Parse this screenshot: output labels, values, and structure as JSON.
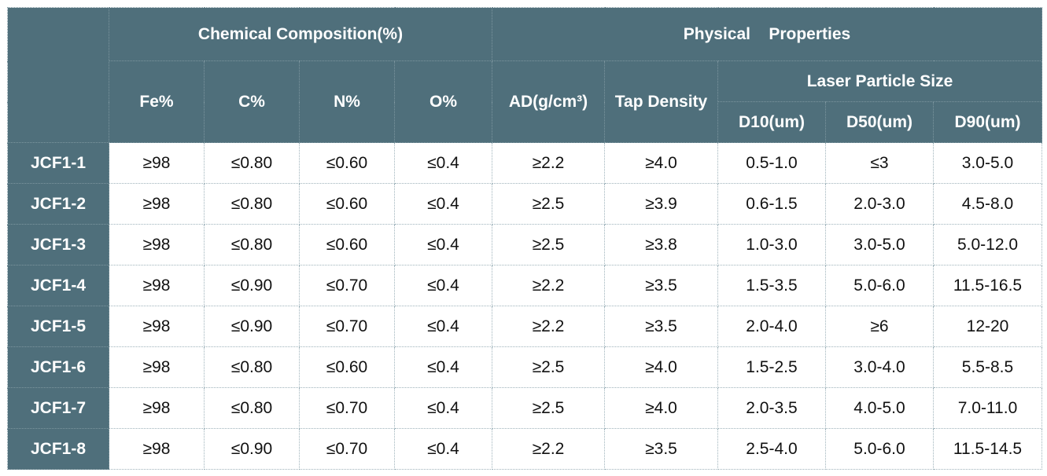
{
  "headers": {
    "chemical": "Chemical Composition(%)",
    "physical": "Physical    Properties",
    "fe": "Fe%",
    "c": "C%",
    "n": "N%",
    "o": "O%",
    "ad": "AD(g/cm³)",
    "tap": "Tap Density",
    "laser": "Laser Particle Size",
    "d10": "D10(um)",
    "d50": "D50(um)",
    "d90": "D90(um)"
  },
  "rows": [
    {
      "grade": "JCF1-1",
      "fe": "≥98",
      "c": "≤0.80",
      "n": "≤0.60",
      "o": "≤0.4",
      "ad": "≥2.2",
      "tap": "≥4.0",
      "d10": "0.5-1.0",
      "d50": "≤3",
      "d90": "3.0-5.0"
    },
    {
      "grade": "JCF1-2",
      "fe": "≥98",
      "c": "≤0.80",
      "n": "≤0.60",
      "o": "≤0.4",
      "ad": "≥2.5",
      "tap": "≥3.9",
      "d10": "0.6-1.5",
      "d50": "2.0-3.0",
      "d90": "4.5-8.0"
    },
    {
      "grade": "JCF1-3",
      "fe": "≥98",
      "c": "≤0.80",
      "n": "≤0.60",
      "o": "≤0.4",
      "ad": "≥2.5",
      "tap": "≥3.8",
      "d10": "1.0-3.0",
      "d50": "3.0-5.0",
      "d90": "5.0-12.0"
    },
    {
      "grade": "JCF1-4",
      "fe": "≥98",
      "c": "≤0.90",
      "n": "≤0.70",
      "o": "≤0.4",
      "ad": "≥2.2",
      "tap": "≥3.5",
      "d10": "1.5-3.5",
      "d50": "5.0-6.0",
      "d90": "11.5-16.5"
    },
    {
      "grade": "JCF1-5",
      "fe": "≥98",
      "c": "≤0.90",
      "n": "≤0.70",
      "o": "≤0.4",
      "ad": "≥2.2",
      "tap": "≥3.5",
      "d10": "2.0-4.0",
      "d50": "≥6",
      "d90": "12-20"
    },
    {
      "grade": "JCF1-6",
      "fe": "≥98",
      "c": "≤0.80",
      "n": "≤0.60",
      "o": "≤0.4",
      "ad": "≥2.5",
      "tap": "≥4.0",
      "d10": "1.5-2.5",
      "d50": "3.0-4.0",
      "d90": "5.5-8.5"
    },
    {
      "grade": "JCF1-7",
      "fe": "≥98",
      "c": "≤0.80",
      "n": "≤0.70",
      "o": "≤0.4",
      "ad": "≥2.5",
      "tap": "≥4.0",
      "d10": "2.0-3.5",
      "d50": "4.0-5.0",
      "d90": "7.0-11.0"
    },
    {
      "grade": "JCF1-8",
      "fe": "≥98",
      "c": "≤0.90",
      "n": "≤0.70",
      "o": "≤0.4",
      "ad": "≥2.2",
      "tap": "≥3.5",
      "d10": "2.5-4.0",
      "d50": "5.0-6.0",
      "d90": "11.5-14.5"
    }
  ],
  "colors": {
    "header_bg": "#4f6f7b",
    "header_text": "#ffffff",
    "cell_text": "#111111"
  }
}
